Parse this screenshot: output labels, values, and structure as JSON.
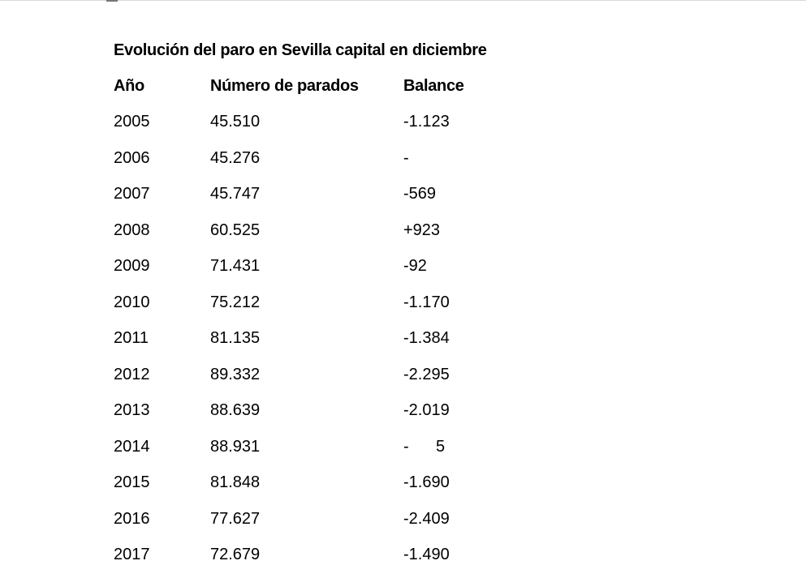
{
  "title": "Evolución del paro en Sevilla capital en diciembre",
  "headers": [
    "Año",
    "Número de parados",
    "Balance"
  ],
  "rows": [
    [
      "2005",
      "45.510",
      "-1.123"
    ],
    [
      "2006",
      "45.276",
      "-"
    ],
    [
      "2007",
      "45.747",
      "-569"
    ],
    [
      "2008",
      "60.525",
      "+923"
    ],
    [
      "2009",
      "71.431",
      "-92"
    ],
    [
      "2010",
      "75.212",
      "-1.170"
    ],
    [
      "2011",
      "81.135",
      "-1.384"
    ],
    [
      "2012",
      "89.332",
      "-2.295"
    ],
    [
      "2013",
      "88.639",
      "-2.019"
    ],
    [
      "2014",
      "88.931",
      "-      5"
    ],
    [
      "2015",
      "81.848",
      "-1.690"
    ],
    [
      "2016",
      "77.627",
      "-2.409"
    ],
    [
      "2017",
      "72.679",
      "-1.490"
    ]
  ]
}
